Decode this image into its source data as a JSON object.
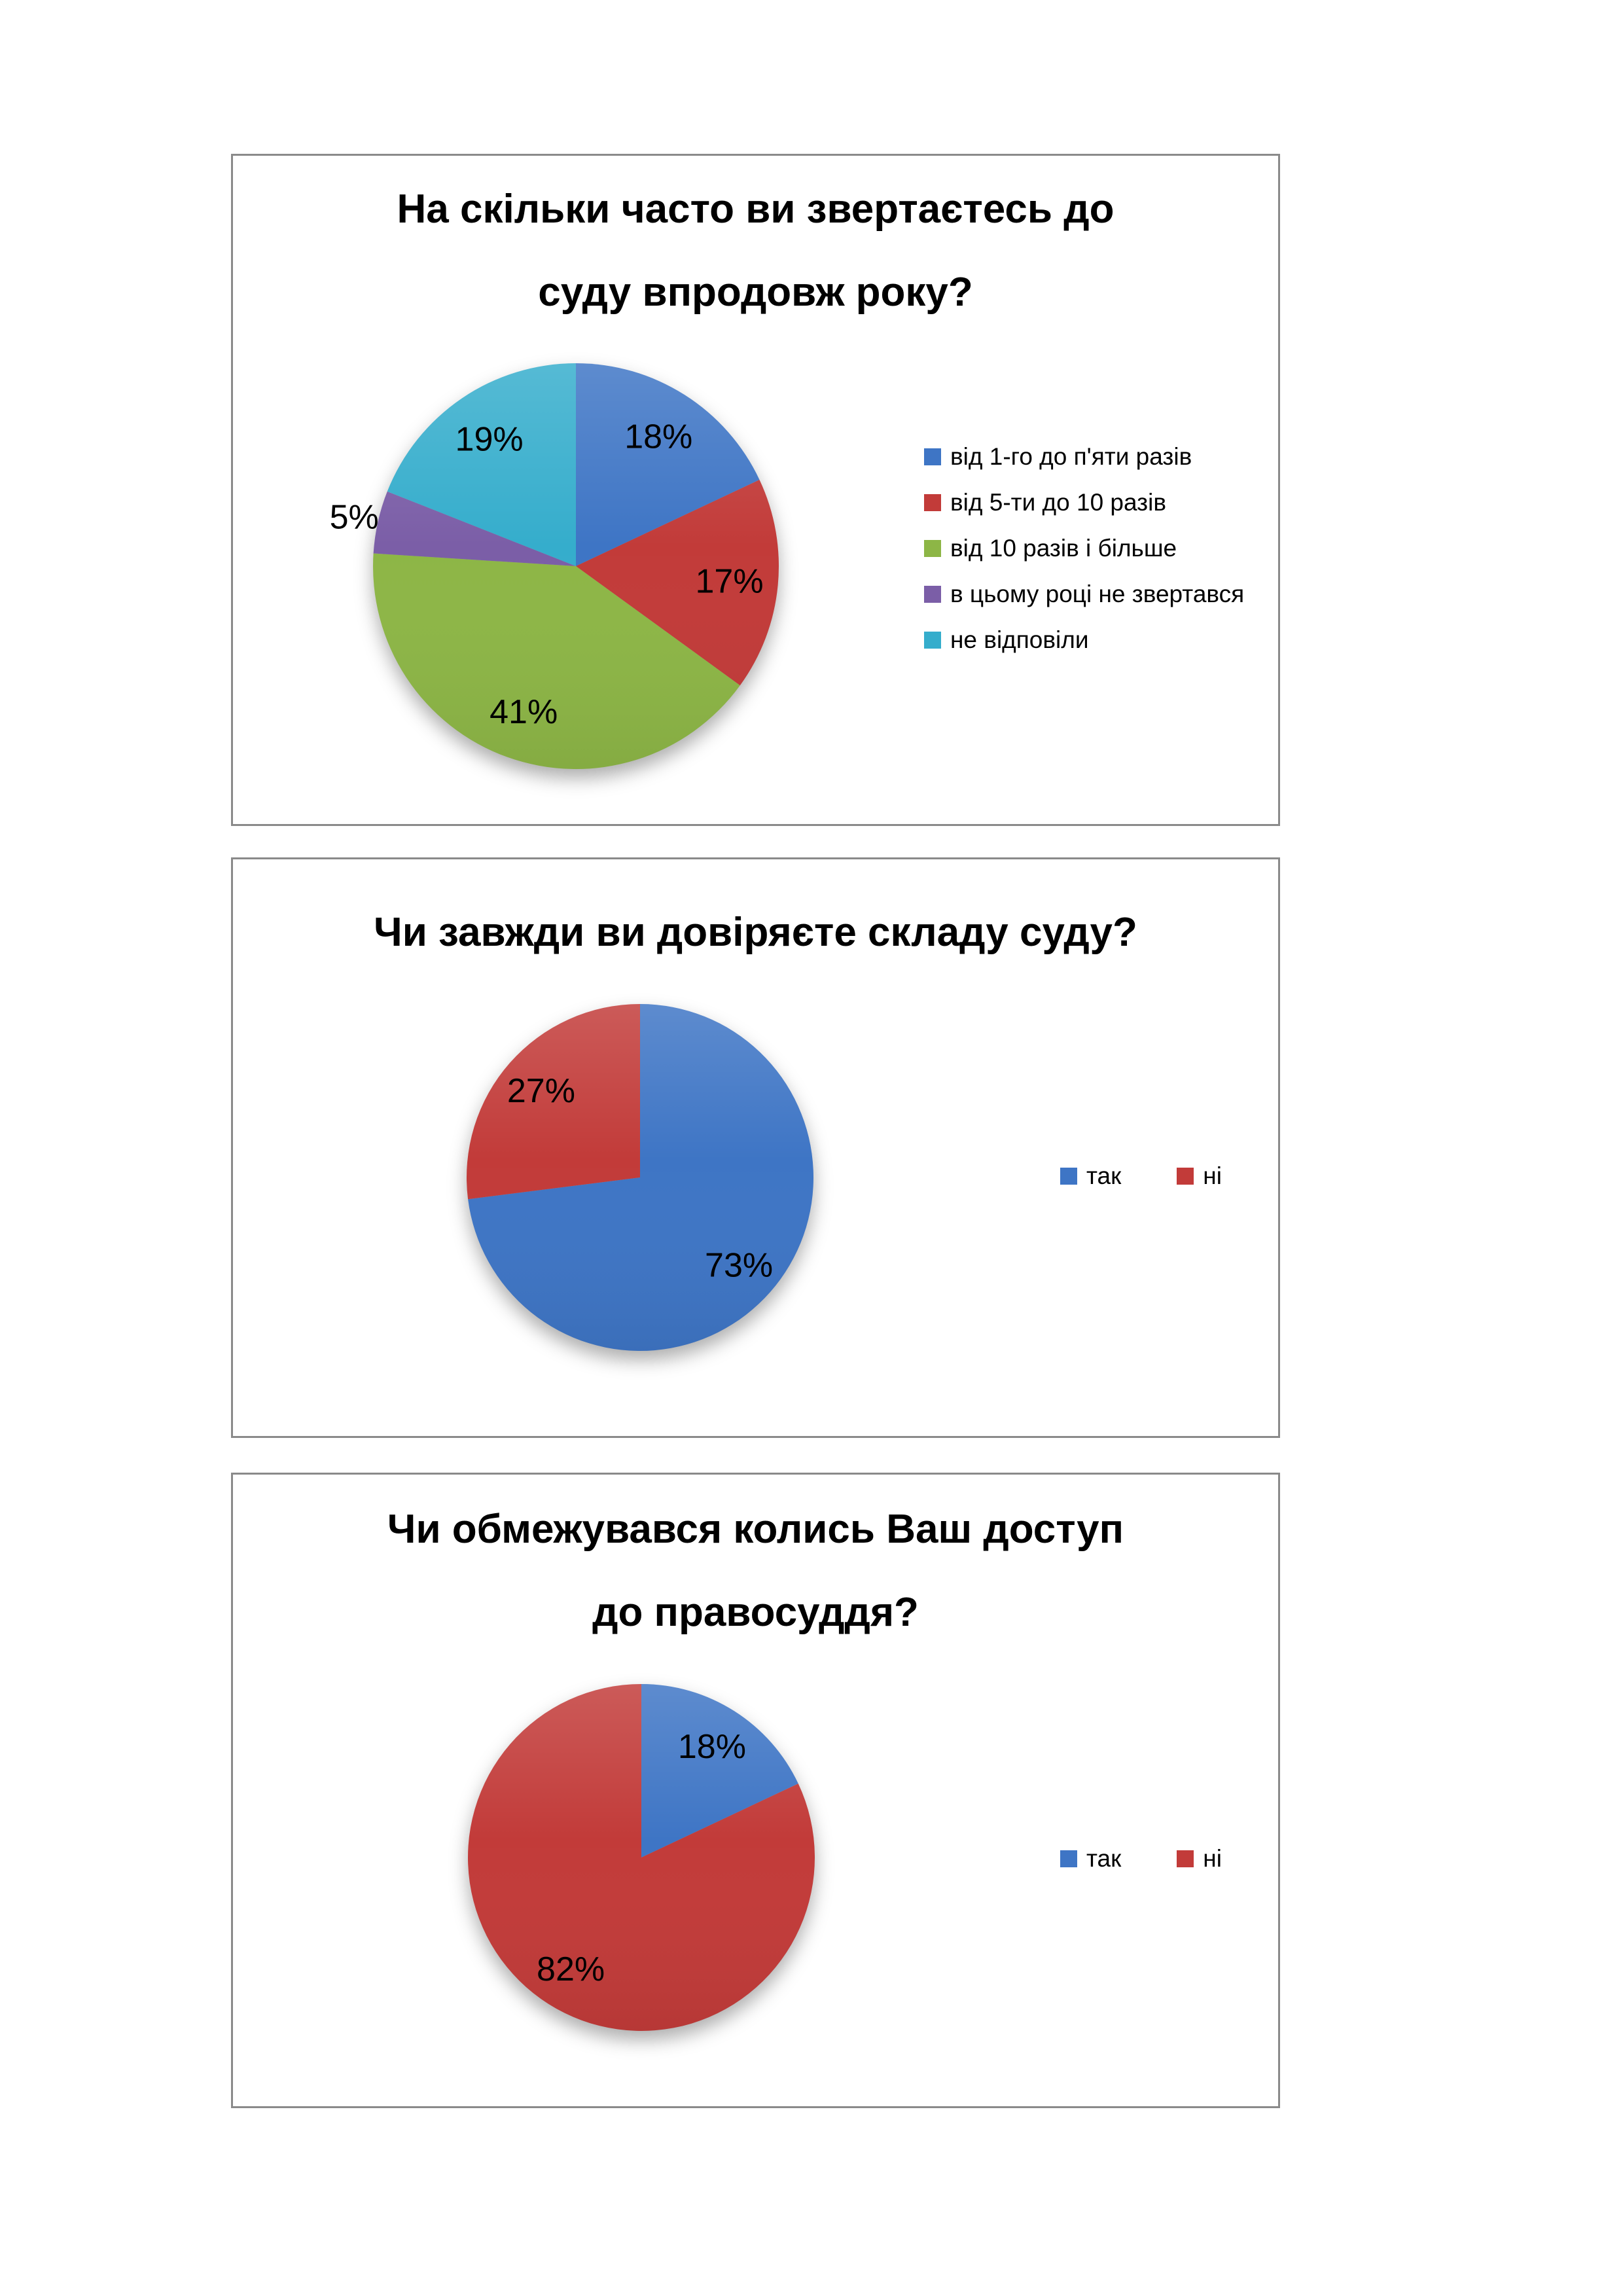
{
  "page": {
    "background": "#ffffff",
    "panel_border_color": "#8a8a8a"
  },
  "chart_data": [
    {
      "type": "pie",
      "title": "На скільки часто ви звертаєтесь до суду впродовж року?",
      "title_lines": [
        "На скільки часто ви звертаєтесь до",
        "суду впродовж року?"
      ],
      "labels": [
        "від 1-го до п'яти разів",
        "від 5-ти до 10 разів",
        "від 10 разів і більше",
        "в цьому році не звертався",
        "не відповіли"
      ],
      "values": [
        18,
        17,
        41,
        5,
        19
      ],
      "unit": "%",
      "data_labels": [
        "18%",
        "17%",
        "41%",
        "5%",
        "19%"
      ],
      "colors": [
        "#3E75C5",
        "#C23B39",
        "#8DB646",
        "#7B5EA7",
        "#35ADCC"
      ],
      "start_angle_deg": 0,
      "direction": "clockwise",
      "legend_position": "right",
      "legend_orientation": "vertical"
    },
    {
      "type": "pie",
      "title": "Чи завжди ви довіряєте складу суду?",
      "title_lines": [
        "Чи завжди ви довіряєте складу суду?"
      ],
      "labels": [
        "так",
        "ні"
      ],
      "values": [
        73,
        27
      ],
      "unit": "%",
      "data_labels": [
        "73%",
        "27%"
      ],
      "colors": [
        "#3E75C5",
        "#C23B39"
      ],
      "start_angle_deg": 0,
      "direction": "clockwise",
      "legend_position": "right",
      "legend_orientation": "horizontal"
    },
    {
      "type": "pie",
      "title": "Чи обмежувався колись Ваш доступ до правосуддя?",
      "title_lines": [
        "Чи обмежувався колись Ваш доступ",
        "до правосуддя?"
      ],
      "labels": [
        "так",
        "ні"
      ],
      "values": [
        18,
        82
      ],
      "unit": "%",
      "data_labels": [
        "18%",
        "82%"
      ],
      "colors": [
        "#3E75C5",
        "#C23B39"
      ],
      "start_angle_deg": 0,
      "direction": "clockwise",
      "legend_position": "right",
      "legend_orientation": "horizontal"
    }
  ]
}
